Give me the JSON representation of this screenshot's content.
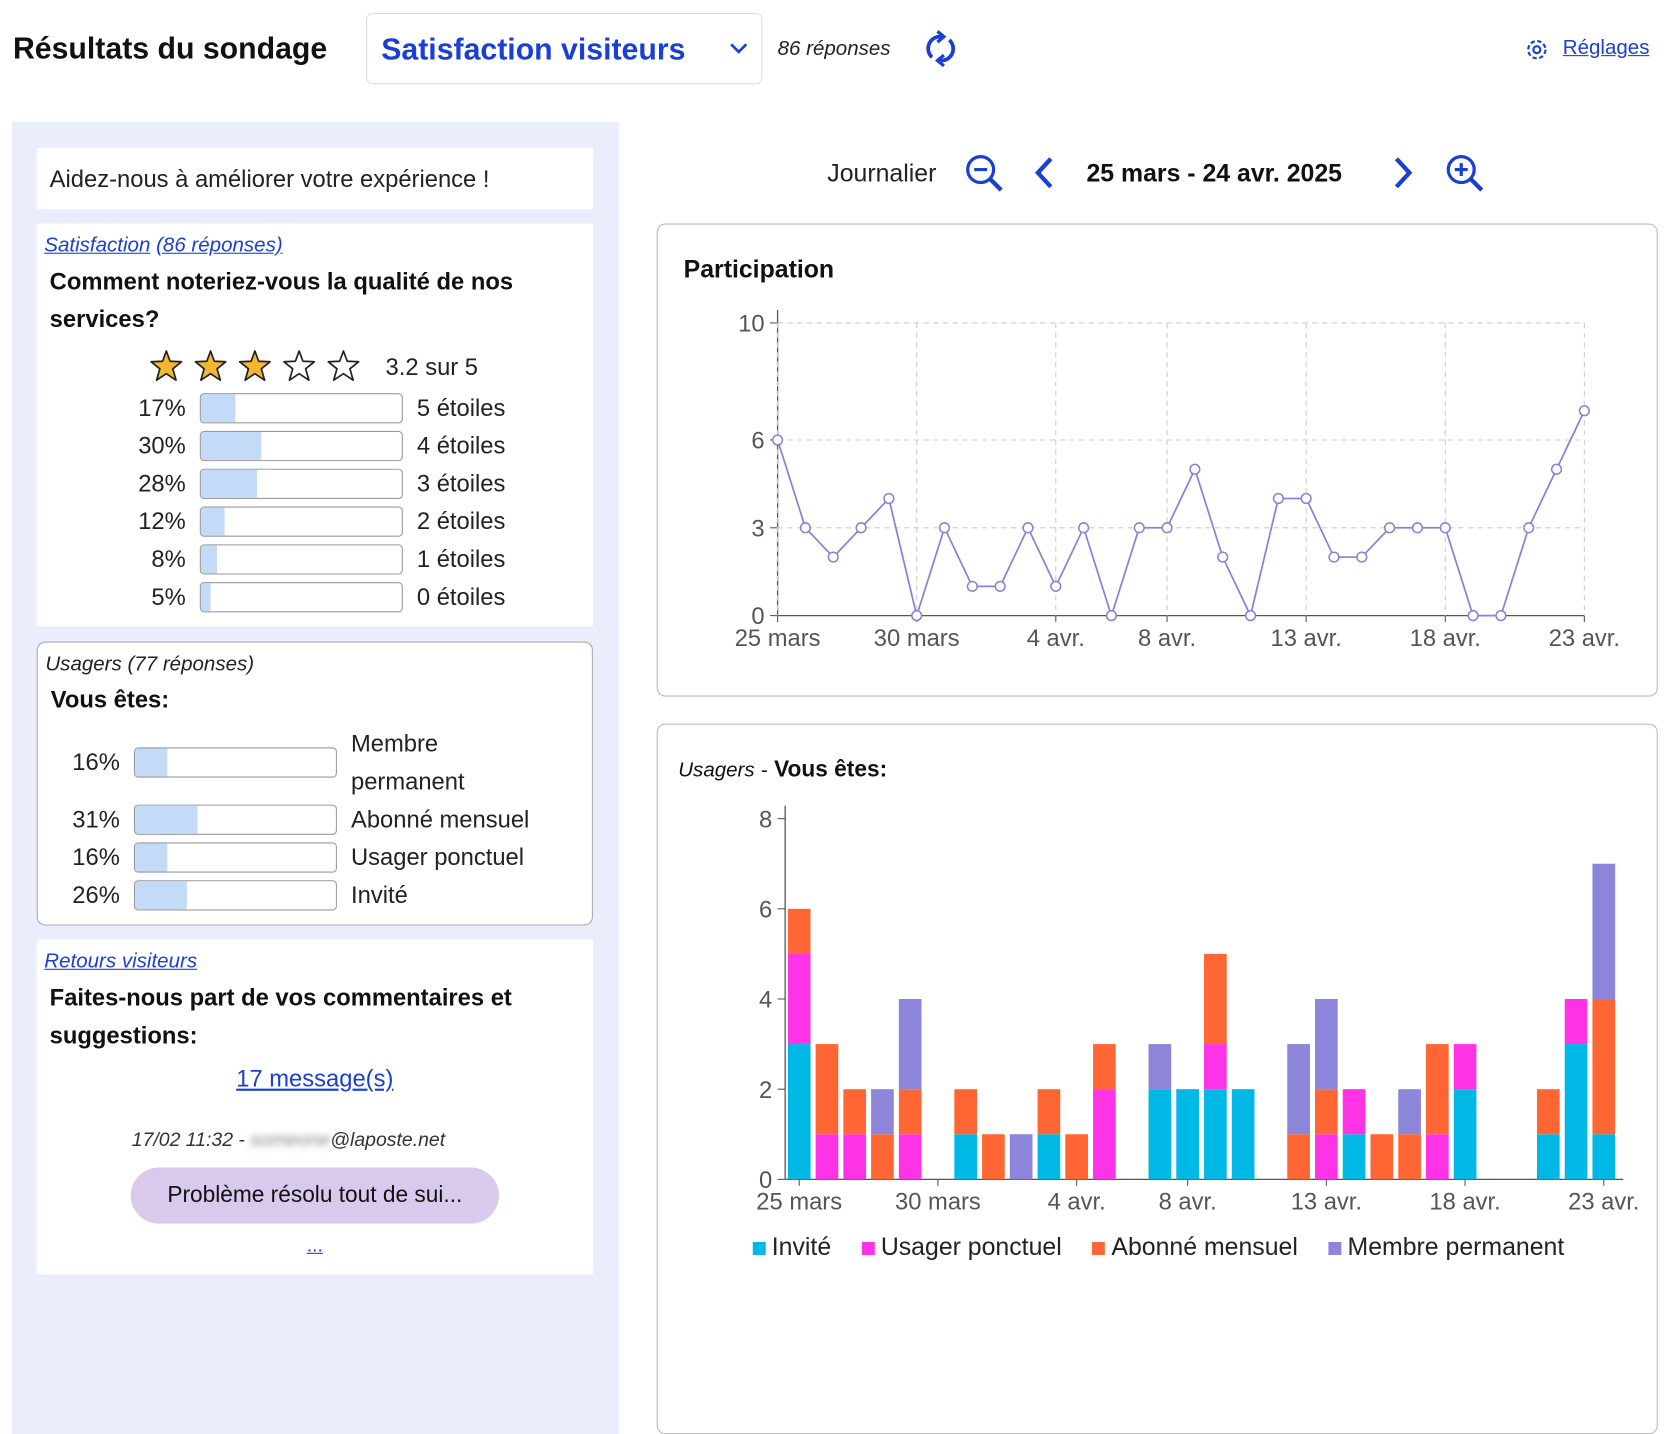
{
  "header": {
    "title": "Résultats du sondage",
    "survey": "Satisfaction visiteurs",
    "responses": "86 réponses",
    "settings": "Réglages"
  },
  "intro": "Aidez-nous à améliorer votre expérience !",
  "satisfaction": {
    "link": "Satisfaction",
    "count": "(86 réponses)",
    "question": "Comment noteriez-vous la qualité de nos services?",
    "rating": "3.2 sur 5",
    "categories": [
      "5 étoiles",
      "4 étoiles",
      "3 étoiles",
      "2 étoiles",
      "1 étoiles",
      "0 étoiles"
    ],
    "values": [
      17,
      30,
      28,
      12,
      8,
      5
    ],
    "value_labels": [
      "17%",
      "30%",
      "28%",
      "12%",
      "8%",
      "5%"
    ]
  },
  "usagers": {
    "title": "Usagers",
    "count": "(77 réponses)",
    "question": "Vous êtes:",
    "categories": [
      "Membre permanent",
      "Abonné mensuel",
      "Usager ponctuel",
      "Invité"
    ],
    "values": [
      16,
      31,
      16,
      26
    ],
    "value_labels": [
      "16%",
      "31%",
      "16%",
      "26%"
    ]
  },
  "comments": {
    "link": "Retours visiteurs",
    "question": "Faites-nous part de vos commentaires et suggestions:",
    "messages": "17 message(s)",
    "date": "17/02 11:32 -",
    "email_user": "someone",
    "email_domain": "@laposte.net",
    "message": "Problème résolu tout de sui...",
    "more": "..."
  },
  "toolbar": {
    "period": "Journalier",
    "range": "25 mars - 24 avr. 2025"
  },
  "chart_data": [
    {
      "type": "line",
      "title": "Participation",
      "color": "#8b7fd8",
      "grid": true,
      "categories": [
        "25 mars",
        null,
        null,
        null,
        null,
        "30 mars",
        null,
        null,
        null,
        null,
        "4 avr.",
        null,
        null,
        null,
        "8 avr.",
        null,
        null,
        null,
        null,
        "13 avr.",
        null,
        null,
        null,
        null,
        "18 avr.",
        null,
        null,
        null,
        null,
        "23 avr."
      ],
      "values": [
        6,
        3,
        2,
        3,
        4,
        0,
        3,
        1,
        1,
        3,
        1,
        3,
        0,
        3,
        3,
        5,
        2,
        0,
        4,
        4,
        2,
        2,
        3,
        3,
        3,
        0,
        0,
        3,
        5,
        7
      ],
      "ylim": [
        0,
        10
      ],
      "yticks": [
        0,
        3,
        6,
        10
      ]
    },
    {
      "type": "bar",
      "stacked": true,
      "subtitle": "Usagers",
      "separator": "-",
      "title": "Vous êtes:",
      "categories": [
        "25 mars",
        null,
        null,
        null,
        null,
        "30 mars",
        null,
        null,
        null,
        null,
        "4 avr.",
        null,
        null,
        null,
        "8 avr.",
        null,
        null,
        null,
        null,
        "13 avr.",
        null,
        null,
        null,
        null,
        "18 avr.",
        null,
        null,
        null,
        null,
        "23 avr."
      ],
      "series": [
        {
          "name": "Invité",
          "color": "#00b8e6",
          "values": [
            3,
            0,
            0,
            0,
            0,
            0,
            1,
            0,
            0,
            1,
            0,
            0,
            0,
            2,
            2,
            2,
            2,
            0,
            0,
            0,
            1,
            0,
            0,
            0,
            2,
            0,
            0,
            1,
            3,
            1
          ]
        },
        {
          "name": "Usager ponctuel",
          "color": "#ff33e6",
          "values": [
            2,
            1,
            1,
            0,
            1,
            0,
            0,
            0,
            0,
            0,
            0,
            2,
            0,
            0,
            0,
            1,
            0,
            0,
            0,
            1,
            1,
            0,
            0,
            1,
            1,
            0,
            0,
            0,
            1,
            0
          ]
        },
        {
          "name": "Abonné mensuel",
          "color": "#ff6633",
          "values": [
            1,
            2,
            1,
            1,
            1,
            0,
            1,
            1,
            0,
            1,
            1,
            1,
            0,
            0,
            0,
            2,
            0,
            0,
            1,
            1,
            0,
            1,
            1,
            2,
            0,
            0,
            0,
            1,
            0,
            3
          ]
        },
        {
          "name": "Membre permanent",
          "color": "#8c85d9",
          "values": [
            0,
            0,
            0,
            1,
            2,
            0,
            0,
            0,
            1,
            0,
            0,
            0,
            0,
            1,
            0,
            0,
            0,
            0,
            2,
            2,
            0,
            0,
            1,
            0,
            0,
            0,
            0,
            0,
            0,
            3
          ]
        }
      ],
      "ylim": [
        0,
        8
      ],
      "yticks": [
        0,
        2,
        4,
        6,
        8
      ]
    }
  ]
}
